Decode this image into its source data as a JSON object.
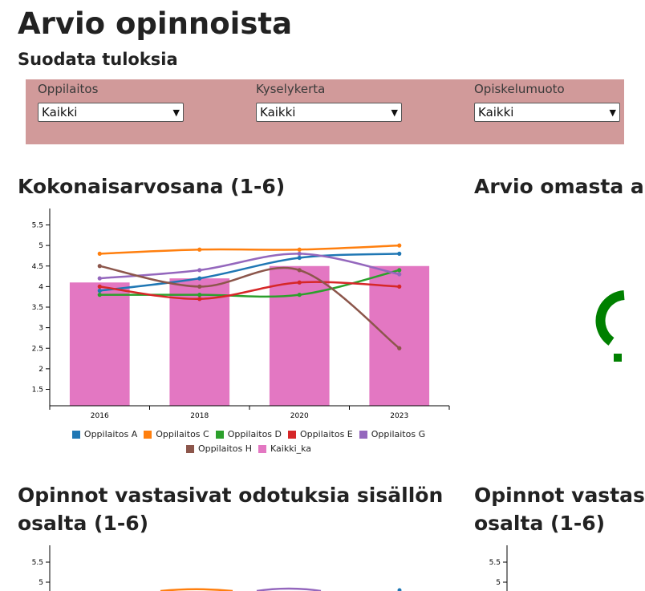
{
  "page": {
    "title": "Arvio opinnoista"
  },
  "filters": {
    "title": "Suodata tuloksia",
    "items": [
      {
        "label": "Oppilaitos",
        "value": "Kaikki"
      },
      {
        "label": "Kyselykerta",
        "value": "Kaikki"
      },
      {
        "label": "Opiskelumuoto",
        "value": "Kaikki"
      }
    ]
  },
  "sections": {
    "chart1_title": "Kokonaisarvosana (1-6)",
    "chart2_title": "Arvio omasta a",
    "chart3_title_line1": "Opinnot vastasivat odotuksia sisällön",
    "chart3_title_line2": "osalta (1-6)",
    "chart4_title_line1": "Opinnot vastas",
    "chart4_title_line2": "osalta (1-6)"
  },
  "gauge": {
    "symbol": "?",
    "color": "#008000"
  },
  "chart_data": [
    {
      "type": "bar",
      "title": "Kokonaisarvosana (1-6)",
      "categories": [
        "2016",
        "2018",
        "2020",
        "2023"
      ],
      "ylim": [
        1.1,
        5.9
      ],
      "yticks": [
        "1.5",
        "2",
        "2.5",
        "3",
        "3.5",
        "4",
        "4.5",
        "5",
        "5.5"
      ],
      "bar_series": {
        "name": "Kaikki_ka",
        "color": "#e377c2",
        "values": [
          4.1,
          4.2,
          4.5,
          4.5
        ]
      },
      "line_series": [
        {
          "name": "Oppilaitos A",
          "color": "#1f77b4",
          "values": [
            3.9,
            4.2,
            4.7,
            4.8
          ]
        },
        {
          "name": "Oppilaitos C",
          "color": "#ff7f0e",
          "values": [
            4.8,
            4.9,
            4.9,
            5.0
          ]
        },
        {
          "name": "Oppilaitos D",
          "color": "#2ca02c",
          "values": [
            3.8,
            3.8,
            3.8,
            4.4
          ]
        },
        {
          "name": "Oppilaitos E",
          "color": "#d62728",
          "values": [
            4.0,
            3.7,
            4.1,
            4.0
          ]
        },
        {
          "name": "Oppilaitos G",
          "color": "#9467bd",
          "values": [
            4.2,
            4.4,
            4.8,
            4.3
          ]
        },
        {
          "name": "Oppilaitos H",
          "color": "#8c564b",
          "values": [
            4.5,
            4.0,
            4.4,
            2.5
          ]
        }
      ],
      "legend": [
        [
          "Oppilaitos A",
          "Oppilaitos C",
          "Oppilaitos D",
          "Oppilaitos E",
          "Oppilaitos G"
        ],
        [
          "Oppilaitos H",
          "Kaikki_ka"
        ]
      ]
    },
    {
      "type": "line",
      "title": "Opinnot vastasivat odotuksia sisällön osalta (1-6)",
      "yticks": [
        "5.5",
        "5"
      ],
      "partial": true
    },
    {
      "type": "line",
      "title": "Opinnot vastas... osalta (1-6)",
      "yticks": [
        "5.5",
        "5"
      ],
      "partial": true
    }
  ]
}
